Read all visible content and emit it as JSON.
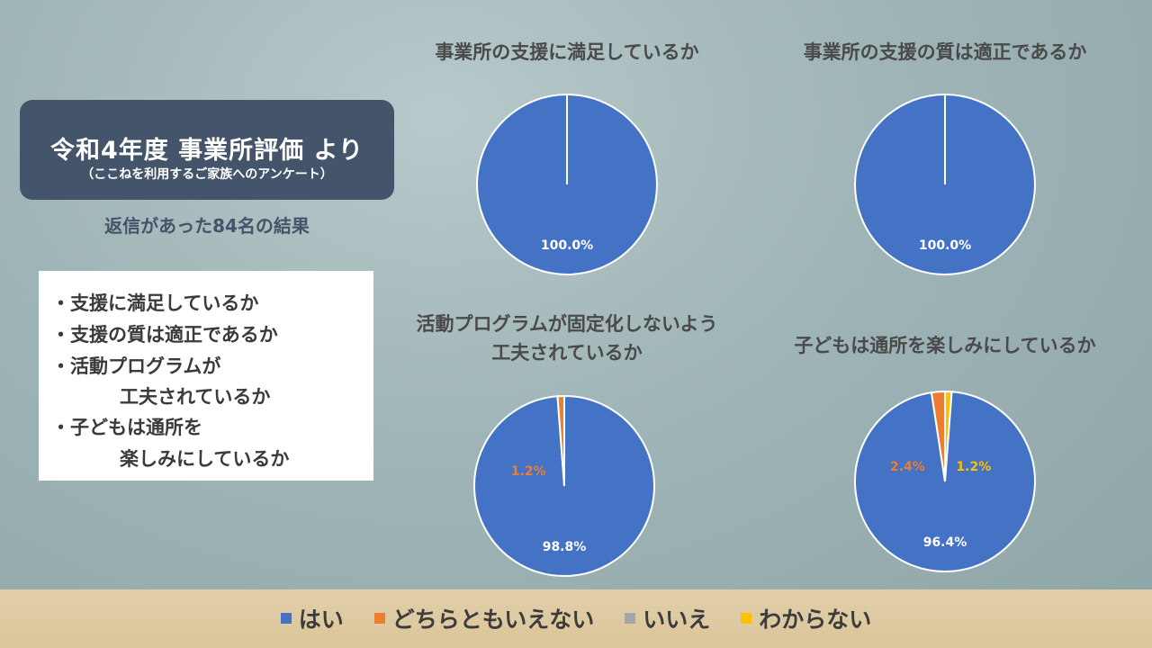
{
  "header": {
    "title": "令和4年度 事業所評価 より",
    "subtitle": "（ここねを利用するご家族へのアンケート）",
    "result_text": "返信があった84名の結果"
  },
  "question_list": [
    {
      "text": "・支援に満足しているか"
    },
    {
      "text": "・支援の質は適正であるか"
    },
    {
      "text": "・活動プログラムが"
    },
    {
      "text": "工夫されているか"
    },
    {
      "text": "・子どもは通所を"
    },
    {
      "text": "楽しみにしているか"
    }
  ],
  "legend": [
    {
      "label": "はい",
      "color": "#4472c4"
    },
    {
      "label": "どちらともいえない",
      "color": "#ed7d31"
    },
    {
      "label": "いいえ",
      "color": "#a5a5a5"
    },
    {
      "label": "わからない",
      "color": "#ffc000"
    }
  ],
  "chart_data": [
    {
      "type": "pie",
      "title": "事業所の支援に満足しているか",
      "categories": [
        "はい",
        "どちらともいえない",
        "いいえ",
        "わからない"
      ],
      "values": [
        100.0,
        0,
        0,
        0
      ],
      "labels": [
        "100.0%",
        "",
        "",
        ""
      ]
    },
    {
      "type": "pie",
      "title": "事業所の支援の質は適正であるか",
      "categories": [
        "はい",
        "どちらともいえない",
        "いいえ",
        "わからない"
      ],
      "values": [
        100.0,
        0,
        0,
        0
      ],
      "labels": [
        "100.0%",
        "",
        "",
        ""
      ]
    },
    {
      "type": "pie",
      "title": "活動プログラムが固定化しないよう\n工夫されているか",
      "categories": [
        "はい",
        "どちらともいえない",
        "いいえ",
        "わからない"
      ],
      "values": [
        98.8,
        1.2,
        0,
        0
      ],
      "labels": [
        "98.8%",
        "1.2%",
        "",
        ""
      ]
    },
    {
      "type": "pie",
      "title": "子どもは通所を楽しみにしているか",
      "categories": [
        "はい",
        "どちらともいえない",
        "いいえ",
        "わからない"
      ],
      "values": [
        96.4,
        2.4,
        0,
        1.2
      ],
      "labels": [
        "96.4%",
        "2.4%",
        "",
        "1.2%"
      ]
    }
  ]
}
